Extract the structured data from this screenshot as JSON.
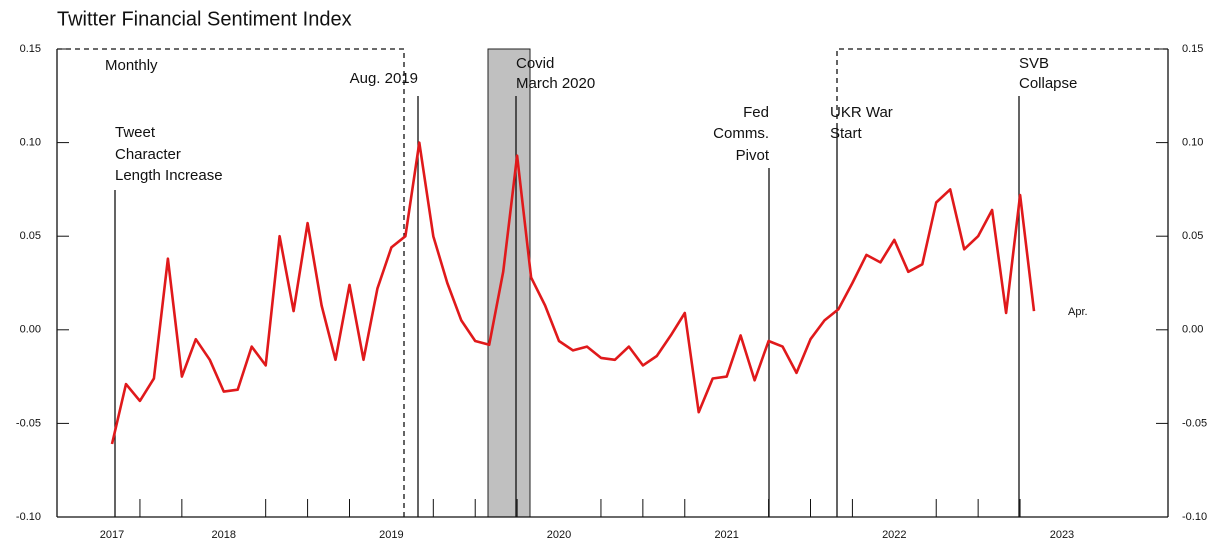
{
  "chart_data": {
    "type": "line",
    "title": "Twitter Financial Sentiment Index",
    "categories": [
      "2017",
      null,
      null,
      null,
      null,
      null,
      null,
      null,
      "2018",
      null,
      null,
      null,
      null,
      null,
      null,
      null,
      null,
      null,
      null,
      null,
      "2019",
      null,
      null,
      null,
      null,
      null,
      null,
      null,
      null,
      null,
      null,
      null,
      "2020",
      null,
      null,
      null,
      null,
      null,
      null,
      null,
      null,
      null,
      null,
      null,
      "2021",
      null,
      null,
      null,
      null,
      null,
      null,
      null,
      null,
      null,
      null,
      null,
      "2022",
      null,
      null,
      null,
      null,
      null,
      null,
      null,
      null,
      null,
      null,
      null,
      "2023"
    ],
    "series": [
      {
        "name": "Twitter Financial Sentiment Index",
        "color": "#e0191b",
        "values": [
          -0.061,
          -0.029,
          -0.038,
          -0.026,
          0.038,
          -0.025,
          -0.005,
          -0.016,
          -0.033,
          -0.032,
          -0.009,
          -0.019,
          0.05,
          0.01,
          0.057,
          0.013,
          -0.016,
          0.024,
          -0.016,
          0.022,
          0.044,
          0.05,
          0.1,
          0.05,
          0.025,
          0.005,
          -0.006,
          -0.008,
          0.031,
          0.093,
          0.028,
          0.013,
          -0.006,
          -0.011,
          -0.009,
          -0.015,
          -0.016,
          -0.009,
          -0.019,
          -0.014,
          -0.003,
          0.009,
          -0.044,
          -0.026,
          -0.025,
          -0.003,
          -0.027,
          -0.006,
          -0.009,
          -0.023,
          -0.005,
          0.005,
          0.011,
          0.025,
          0.04,
          0.036,
          0.048,
          0.031,
          0.035,
          0.068,
          0.075,
          0.043,
          0.05,
          0.064,
          0.009,
          0.072,
          0.01,
          null,
          null
        ]
      }
    ],
    "ylim": [
      -0.1,
      0.15
    ],
    "yticks": [
      {
        "value": -0.1,
        "label": "-0.10"
      },
      -0.05,
      {
        "value": 0,
        "label": "0.00"
      },
      0.05,
      {
        "value": 0.1,
        "label": "0.10"
      },
      0.15
    ],
    "annotations": {
      "monthly": "Monthly",
      "end": "Apr.",
      "tweet": [
        "Tweet",
        "Character",
        "Length Increase"
      ],
      "aug": [
        "Aug. 2019"
      ],
      "covid": [
        "Covid",
        "March 2020"
      ],
      "fed": [
        "Fed",
        "Comms.",
        "Pivot"
      ],
      "ukr": [
        "UKR War",
        "Start"
      ],
      "svb": [
        "SVB",
        "Collapse"
      ]
    }
  }
}
